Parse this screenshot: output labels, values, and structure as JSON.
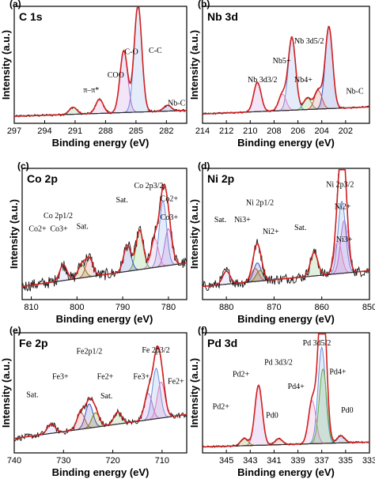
{
  "figure": {
    "y_axis_label": "Intensity (a.u.)",
    "x_axis_label": "Binding energy (eV)"
  },
  "chart_data": [
    {
      "type": "line",
      "panel_letter": "(a)",
      "element_title": "C 1s",
      "xlabel": "Binding energy (eV)",
      "ylabel": "Intensity (a.u.)",
      "xlim": [
        297,
        280
      ],
      "x_ticks": [
        297,
        294,
        291,
        288,
        285,
        282
      ],
      "annotations": [
        "π–π*",
        "COO",
        "C-O",
        "C-C",
        "Nb-C"
      ],
      "peaks": [
        {
          "label": "C-C",
          "center": 284.8,
          "height": 0.92
        },
        {
          "label": "C-O",
          "center": 286.2,
          "height": 0.53
        },
        {
          "label": "COO",
          "center": 288.6,
          "height": 0.12
        },
        {
          "label": "π–π*",
          "center": 291.2,
          "height": 0.06
        },
        {
          "label": "Nb-C",
          "center": 281.9,
          "height": 0.05
        }
      ]
    },
    {
      "type": "line",
      "panel_letter": "(b)",
      "element_title": "Nb 3d",
      "xlabel": "Binding energy (eV)",
      "ylabel": "Intensity (a.u.)",
      "xlim": [
        214,
        200
      ],
      "x_ticks": [
        214,
        212,
        210,
        208,
        206,
        204,
        202
      ],
      "annotations": [
        "Nb 3d5/2",
        "Nb 3d3/2",
        "Nb5+",
        "Nb4+",
        "Nb-C"
      ],
      "peaks": [
        {
          "label": "Nb 3d5/2",
          "center": 206.5,
          "height": 0.62
        },
        {
          "label": "Nb 3d3/2",
          "center": 209.4,
          "height": 0.25
        },
        {
          "label": "Nb5+",
          "center": 207.3,
          "height": 0.14
        },
        {
          "label": "Nb4+",
          "center": 205.2,
          "height": 0.1
        },
        {
          "label": "Nb 3d",
          "center": 203.4,
          "height": 0.7
        },
        {
          "label": "Nb-C",
          "center": 204.3,
          "height": 0.16
        }
      ]
    },
    {
      "type": "line",
      "panel_letter": "(c)",
      "element_title": "Co 2p",
      "xlabel": "Binding energy (eV)",
      "ylabel": "Intensity (a.u.)",
      "xlim": [
        812,
        776
      ],
      "x_ticks": [
        810,
        800,
        790,
        780
      ],
      "annotations": [
        "Co 2p1/2",
        "Co 2p3/2",
        "Co2+",
        "Co3+",
        "Sat.",
        "Sat.",
        "Co3+",
        "Co2+"
      ],
      "peaks": [
        {
          "label": "Co 2p3/2",
          "center": 781.2,
          "height": 0.5
        },
        {
          "label": "Co3+",
          "center": 780.0,
          "height": 0.28
        },
        {
          "label": "Co2+",
          "center": 783.0,
          "height": 0.22
        },
        {
          "label": "Sat.",
          "center": 786.3,
          "height": 0.3
        },
        {
          "label": "Sat.",
          "center": 789.0,
          "height": 0.2
        },
        {
          "label": "Co 2p1/2",
          "center": 797.3,
          "height": 0.14
        },
        {
          "label": "Co3+",
          "center": 799.0,
          "height": 0.1
        },
        {
          "label": "Co2+",
          "center": 803.0,
          "height": 0.12
        }
      ]
    },
    {
      "type": "line",
      "panel_letter": "(d)",
      "element_title": "Ni 2p",
      "xlabel": "Binding energy (eV)",
      "ylabel": "Intensity (a.u.)",
      "xlim": [
        885,
        850
      ],
      "x_ticks": [
        880,
        870,
        860,
        850
      ],
      "annotations": [
        "Ni 2p3/2",
        "Ni 2p1/2",
        "Sat.",
        "Ni3+",
        "Ni2+",
        "Sat.",
        "Ni2+",
        "Ni3+"
      ],
      "peaks": [
        {
          "label": "Ni 2p3/2",
          "center": 855.8,
          "height": 0.55
        },
        {
          "label": "Ni2+",
          "center": 855.3,
          "height": 0.4
        },
        {
          "label": "Ni3+",
          "center": 856.6,
          "height": 0.25
        },
        {
          "label": "Sat.",
          "center": 861.6,
          "height": 0.18
        },
        {
          "label": "Ni 2p1/2",
          "center": 873.5,
          "height": 0.14
        },
        {
          "label": "Ni3+",
          "center": 874.0,
          "height": 0.1
        },
        {
          "label": "Ni2+",
          "center": 873.0,
          "height": 0.08
        },
        {
          "label": "Sat.",
          "center": 880.0,
          "height": 0.1
        }
      ]
    },
    {
      "type": "line",
      "panel_letter": "(e)",
      "element_title": "Fe 2p",
      "xlabel": "Binding energy (eV)",
      "ylabel": "Intensity (a.u.)",
      "xlim": [
        740,
        705
      ],
      "x_ticks": [
        740,
        730,
        720,
        710
      ],
      "annotations": [
        "Fe 2p3/2",
        "Fe2p1/2",
        "Fe3+",
        "Fe2+",
        "Sat.",
        "Sat.",
        "Fe3+",
        "Fe2+"
      ],
      "peaks": [
        {
          "label": "Fe 2p3/2",
          "center": 711.2,
          "height": 0.42
        },
        {
          "label": "Fe3+",
          "center": 712.8,
          "height": 0.22
        },
        {
          "label": "Fe2+",
          "center": 710.2,
          "height": 0.3
        },
        {
          "label": "Sat.",
          "center": 719.0,
          "height": 0.1
        },
        {
          "label": "Fe2p1/2",
          "center": 724.8,
          "height": 0.2
        },
        {
          "label": "Fe3+",
          "center": 726.5,
          "height": 0.14
        },
        {
          "label": "Fe2+",
          "center": 723.5,
          "height": 0.12
        },
        {
          "label": "Sat.",
          "center": 732.5,
          "height": 0.08
        }
      ]
    },
    {
      "type": "line",
      "panel_letter": "(f)",
      "element_title": "Pd 3d",
      "xlabel": "Binding energy (eV)",
      "ylabel": "Intensity (a.u.)",
      "xlim": [
        347,
        333
      ],
      "x_ticks": [
        345,
        343,
        341,
        339,
        337,
        335,
        333
      ],
      "annotations": [
        "Pd 3d5/2",
        "Pd 3d3/2",
        "Pd2+",
        "Pd4+",
        "Pd0",
        "Pd4+",
        "Pd2+",
        "Pd0"
      ],
      "peaks": [
        {
          "label": "Pd 3d5/2",
          "center": 337.0,
          "height": 0.8
        },
        {
          "label": "Pd 3d3/2",
          "center": 342.3,
          "height": 0.5
        },
        {
          "label": "Pd4+",
          "center": 337.8,
          "height": 0.36
        },
        {
          "label": "Pd2+",
          "center": 336.9,
          "height": 0.62
        },
        {
          "label": "Pd0",
          "center": 335.4,
          "height": 0.06
        },
        {
          "label": "Pd0",
          "center": 340.6,
          "height": 0.05
        },
        {
          "label": "Pd4+",
          "center": 343.5,
          "height": 0.06
        }
      ]
    }
  ]
}
